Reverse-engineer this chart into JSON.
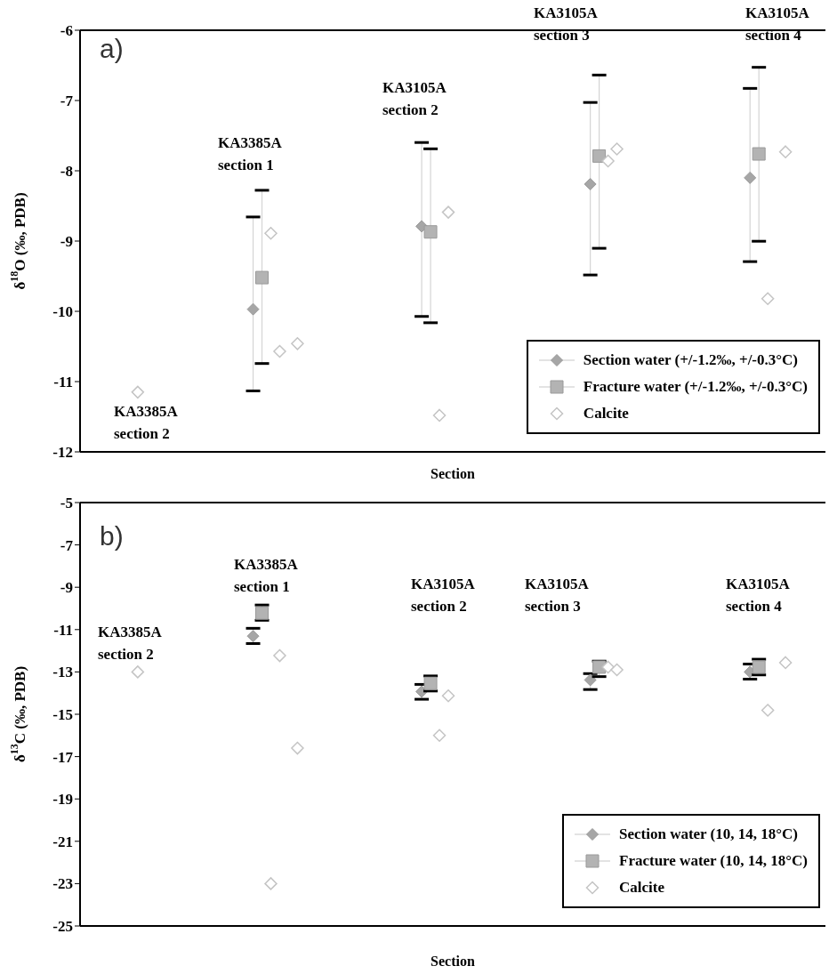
{
  "chart_data": [
    {
      "type": "scatter",
      "title": "a)",
      "xlabel": "Section",
      "ylabel": "δ$^{18}$O (‰, PDB)",
      "ylim": [
        -12,
        -6
      ],
      "yticks": [
        -12,
        -11,
        -10,
        -9,
        -8,
        -7,
        -6
      ],
      "legend": "bottom right",
      "tick_labels": "y",
      "annotations": [
        "KA3385A\nsection 2",
        "KA3385A\nsection 1",
        "KA3105A\nsection 2",
        "KA3105A\nsection 3",
        "KA3105A\nsection 4"
      ],
      "categories": [
        null,
        null,
        null,
        null,
        null,
        null,
        null,
        null,
        null,
        null,
        null,
        null,
        null,
        null,
        null,
        null,
        null,
        null,
        null,
        null,
        null,
        null,
        null,
        null,
        null,
        null,
        null,
        null,
        null,
        null,
        null,
        null,
        null,
        null,
        null,
        null,
        null,
        null,
        null,
        null,
        null,
        null,
        null,
        null,
        null,
        null,
        null,
        null,
        null,
        null,
        null,
        null,
        null,
        null,
        null,
        null,
        null,
        null,
        null,
        null,
        null,
        null,
        null,
        null,
        null,
        null,
        null,
        null,
        null,
        null,
        null,
        null,
        null,
        null,
        null,
        null,
        null,
        null,
        null,
        null,
        null,
        null,
        null,
        null
      ],
      "series": [
        {
          "name": "Section water (+/-1.2‰, +/-0.3°C)",
          "color": "#a6a6a6",
          "marker": "diamond",
          "values": [
            null,
            null,
            null,
            null,
            null,
            null,
            null,
            null,
            null,
            null,
            null,
            null,
            null,
            null,
            null,
            null,
            null,
            null,
            null,
            -9.97,
            null,
            null,
            null,
            null,
            null,
            null,
            null,
            null,
            null,
            null,
            null,
            null,
            null,
            null,
            null,
            null,
            null,
            null,
            -8.79,
            null,
            null,
            null,
            null,
            null,
            null,
            null,
            null,
            null,
            null,
            null,
            null,
            null,
            null,
            null,
            null,
            null,
            null,
            -8.19,
            null,
            null,
            null,
            null,
            null,
            null,
            null,
            null,
            null,
            null,
            null,
            null,
            null,
            null,
            null,
            null,
            null,
            -8.1,
            null,
            null,
            null,
            null,
            null,
            null,
            null,
            null
          ],
          "errors": [
            null,
            null,
            null,
            null,
            null,
            null,
            null,
            null,
            null,
            null,
            null,
            null,
            null,
            null,
            null,
            null,
            null,
            null,
            null,
            [
              -11.13,
              -8.66
            ],
            null,
            null,
            null,
            null,
            null,
            null,
            null,
            null,
            null,
            null,
            null,
            null,
            null,
            null,
            null,
            null,
            null,
            null,
            [
              -10.07,
              -7.6
            ],
            null,
            null,
            null,
            null,
            null,
            null,
            null,
            null,
            null,
            null,
            null,
            null,
            null,
            null,
            null,
            null,
            null,
            null,
            [
              -9.48,
              -7.03
            ],
            null,
            null,
            null,
            null,
            null,
            null,
            null,
            null,
            null,
            null,
            null,
            null,
            null,
            null,
            null,
            null,
            null,
            [
              -9.29,
              -6.83
            ],
            null,
            null,
            null,
            null,
            null,
            null,
            null,
            null
          ]
        },
        {
          "name": "Fracture water (+/-1.2‰, +/-0.3°C)",
          "color": "#b3b3b3",
          "marker": "square",
          "values": [
            null,
            null,
            null,
            null,
            null,
            null,
            null,
            null,
            null,
            null,
            null,
            null,
            null,
            null,
            null,
            null,
            null,
            null,
            null,
            null,
            -9.52,
            null,
            null,
            null,
            null,
            null,
            null,
            null,
            null,
            null,
            null,
            null,
            null,
            null,
            null,
            null,
            null,
            null,
            null,
            -8.87,
            null,
            null,
            null,
            null,
            null,
            null,
            null,
            null,
            null,
            null,
            null,
            null,
            null,
            null,
            null,
            null,
            null,
            null,
            -7.79,
            null,
            null,
            null,
            null,
            null,
            null,
            null,
            null,
            null,
            null,
            null,
            null,
            null,
            null,
            null,
            null,
            null,
            -7.76,
            null,
            null,
            null,
            null,
            null,
            null,
            null
          ],
          "errors": [
            null,
            null,
            null,
            null,
            null,
            null,
            null,
            null,
            null,
            null,
            null,
            null,
            null,
            null,
            null,
            null,
            null,
            null,
            null,
            null,
            [
              -10.74,
              -8.28
            ],
            null,
            null,
            null,
            null,
            null,
            null,
            null,
            null,
            null,
            null,
            null,
            null,
            null,
            null,
            null,
            null,
            null,
            null,
            [
              -10.16,
              -7.69
            ],
            null,
            null,
            null,
            null,
            null,
            null,
            null,
            null,
            null,
            null,
            null,
            null,
            null,
            null,
            null,
            null,
            null,
            null,
            [
              -9.1,
              -6.64
            ],
            null,
            null,
            null,
            null,
            null,
            null,
            null,
            null,
            null,
            null,
            null,
            null,
            null,
            null,
            null,
            null,
            null,
            [
              -9.0,
              -6.53
            ],
            null,
            null,
            null,
            null,
            null,
            null,
            null
          ]
        },
        {
          "name": "Calcite",
          "color": "#c4c4c4",
          "marker": "diamond",
          "values": [
            null,
            null,
            null,
            null,
            null,
            null,
            -11.15,
            null,
            null,
            null,
            null,
            null,
            null,
            null,
            null,
            null,
            null,
            null,
            null,
            null,
            null,
            -8.89,
            -10.57,
            null,
            -10.46,
            null,
            null,
            null,
            null,
            null,
            null,
            null,
            null,
            null,
            null,
            null,
            null,
            null,
            null,
            null,
            -11.48,
            -8.59,
            null,
            null,
            null,
            null,
            null,
            null,
            null,
            null,
            null,
            null,
            null,
            null,
            null,
            null,
            null,
            null,
            null,
            -7.86,
            -7.69,
            null,
            null,
            null,
            null,
            null,
            null,
            null,
            null,
            null,
            null,
            null,
            null,
            null,
            null,
            null,
            null,
            -9.82,
            null,
            -7.73,
            null,
            null,
            null,
            null
          ]
        }
      ]
    },
    {
      "type": "scatter",
      "title": "b)",
      "xlabel": "Section",
      "ylabel": "δ$^{13}$C (‰, PDB)",
      "ylim": [
        -25,
        -5
      ],
      "yticks": [
        -25,
        -23,
        -21,
        -19,
        -17,
        -15,
        -13,
        -11,
        -9,
        -7,
        -5
      ],
      "legend": "bottom right",
      "tick_labels": "y",
      "annotations": [
        "KA3385A\nsection 2",
        "KA3385A\nsection 1",
        "KA3105A\nsection 2",
        "KA3105A\nsection 3",
        "KA3105A\nsection 4"
      ],
      "categories": [
        null,
        null,
        null,
        null,
        null,
        null,
        null,
        null,
        null,
        null,
        null,
        null,
        null,
        null,
        null,
        null,
        null,
        null,
        null,
        null,
        null,
        null,
        null,
        null,
        null,
        null,
        null,
        null,
        null,
        null,
        null,
        null,
        null,
        null,
        null,
        null,
        null,
        null,
        null,
        null,
        null,
        null,
        null,
        null,
        null,
        null,
        null,
        null,
        null,
        null,
        null,
        null,
        null,
        null,
        null,
        null,
        null,
        null,
        null,
        null,
        null,
        null,
        null,
        null,
        null,
        null,
        null,
        null,
        null,
        null,
        null,
        null,
        null,
        null,
        null,
        null,
        null,
        null,
        null,
        null,
        null,
        null,
        null,
        null
      ],
      "series": [
        {
          "name": "Section water (10, 14, 18°C)",
          "color": "#a6a6a6",
          "marker": "diamond",
          "values": [
            null,
            null,
            null,
            null,
            null,
            null,
            null,
            null,
            null,
            null,
            null,
            null,
            null,
            null,
            null,
            null,
            null,
            null,
            null,
            -11.31,
            null,
            null,
            null,
            null,
            null,
            null,
            null,
            null,
            null,
            null,
            null,
            null,
            null,
            null,
            null,
            null,
            null,
            null,
            -13.93,
            null,
            null,
            null,
            null,
            null,
            null,
            null,
            null,
            null,
            null,
            null,
            null,
            null,
            null,
            null,
            null,
            null,
            null,
            -13.38,
            null,
            null,
            null,
            null,
            null,
            null,
            null,
            null,
            null,
            null,
            null,
            null,
            null,
            null,
            null,
            null,
            null,
            -13.0,
            null,
            null,
            null,
            null,
            null,
            null,
            null,
            null
          ],
          "errors": [
            null,
            null,
            null,
            null,
            null,
            null,
            null,
            null,
            null,
            null,
            null,
            null,
            null,
            null,
            null,
            null,
            null,
            null,
            null,
            [
              -11.66,
              -10.94
            ],
            null,
            null,
            null,
            null,
            null,
            null,
            null,
            null,
            null,
            null,
            null,
            null,
            null,
            null,
            null,
            null,
            null,
            null,
            [
              -14.29,
              -13.59
            ],
            null,
            null,
            null,
            null,
            null,
            null,
            null,
            null,
            null,
            null,
            null,
            null,
            null,
            null,
            null,
            null,
            null,
            null,
            [
              -13.83,
              -13.08
            ],
            null,
            null,
            null,
            null,
            null,
            null,
            null,
            null,
            null,
            null,
            null,
            null,
            null,
            null,
            null,
            null,
            null,
            [
              -13.34,
              -12.63
            ],
            null,
            null,
            null,
            null,
            null,
            null,
            null,
            null
          ]
        },
        {
          "name": "Fracture water (10, 14, 18°C)",
          "color": "#b3b3b3",
          "marker": "square",
          "values": [
            null,
            null,
            null,
            null,
            null,
            null,
            null,
            null,
            null,
            null,
            null,
            null,
            null,
            null,
            null,
            null,
            null,
            null,
            null,
            null,
            -10.22,
            null,
            null,
            null,
            null,
            null,
            null,
            null,
            null,
            null,
            null,
            null,
            null,
            null,
            null,
            null,
            null,
            null,
            null,
            -13.54,
            null,
            null,
            null,
            null,
            null,
            null,
            null,
            null,
            null,
            null,
            null,
            null,
            null,
            null,
            null,
            null,
            null,
            null,
            -12.77,
            null,
            null,
            null,
            null,
            null,
            null,
            null,
            null,
            null,
            null,
            null,
            null,
            null,
            null,
            null,
            null,
            null,
            -12.77,
            null,
            null,
            null,
            null,
            null,
            null,
            null
          ],
          "errors": [
            null,
            null,
            null,
            null,
            null,
            null,
            null,
            null,
            null,
            null,
            null,
            null,
            null,
            null,
            null,
            null,
            null,
            null,
            null,
            null,
            [
              -10.56,
              -9.84
            ],
            null,
            null,
            null,
            null,
            null,
            null,
            null,
            null,
            null,
            null,
            null,
            null,
            null,
            null,
            null,
            null,
            null,
            null,
            [
              -13.9,
              -13.19
            ],
            null,
            null,
            null,
            null,
            null,
            null,
            null,
            null,
            null,
            null,
            null,
            null,
            null,
            null,
            null,
            null,
            null,
            null,
            [
              -13.22,
              -12.49
            ],
            null,
            null,
            null,
            null,
            null,
            null,
            null,
            null,
            null,
            null,
            null,
            null,
            null,
            null,
            null,
            null,
            null,
            [
              -13.14,
              -12.4
            ],
            null,
            null,
            null,
            null,
            null,
            null,
            null
          ]
        },
        {
          "name": "Calcite",
          "color": "#c4c4c4",
          "marker": "diamond",
          "values": [
            null,
            null,
            null,
            null,
            null,
            null,
            -13.0,
            null,
            null,
            null,
            null,
            null,
            null,
            null,
            null,
            null,
            null,
            null,
            null,
            null,
            null,
            -23.0,
            -12.23,
            null,
            -16.6,
            null,
            null,
            null,
            null,
            null,
            null,
            null,
            null,
            null,
            null,
            null,
            null,
            null,
            null,
            null,
            -16.0,
            -14.13,
            null,
            null,
            null,
            null,
            null,
            null,
            null,
            null,
            null,
            null,
            null,
            null,
            null,
            null,
            null,
            null,
            null,
            -12.77,
            -12.9,
            null,
            null,
            null,
            null,
            null,
            null,
            null,
            null,
            null,
            null,
            null,
            null,
            null,
            null,
            null,
            null,
            -14.81,
            null,
            -12.56,
            null,
            null,
            null,
            null
          ]
        }
      ]
    }
  ]
}
